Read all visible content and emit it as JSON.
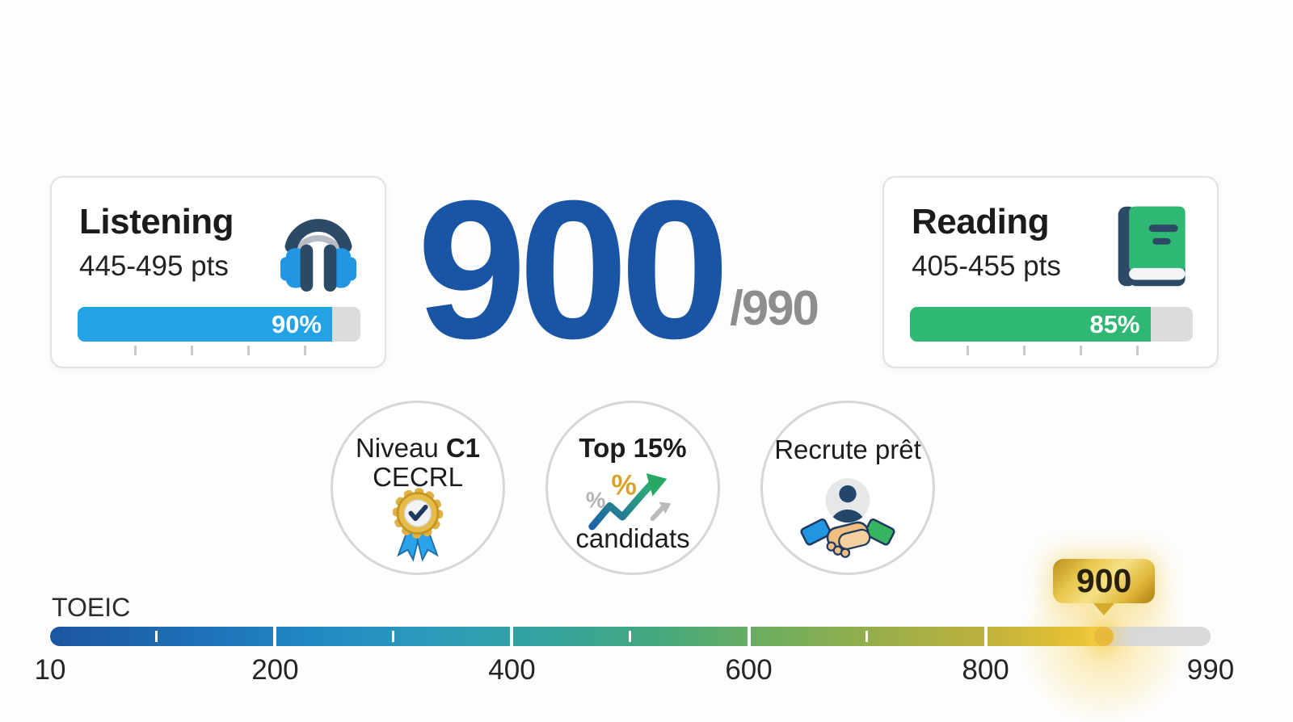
{
  "chart_data": {
    "type": "bar",
    "title": "TOEIC 900/990",
    "categories": [
      "Listening",
      "Reading"
    ],
    "values": [
      90,
      85
    ],
    "value_unit": "%",
    "category_point_ranges": [
      "445-495 pts",
      "405-455 pts"
    ],
    "gauge": {
      "label": "TOEIC",
      "min": 10,
      "max": 990,
      "marker": 900,
      "axis_tick_labels": [
        10,
        200,
        400,
        600,
        800,
        990
      ],
      "gradient": [
        "#1d55a0",
        "#2187c4",
        "#34a3a0",
        "#43a87f",
        "#96ae4b",
        "#e0be35",
        "#f0ca3a"
      ],
      "remainder_color": "#d9d9d9"
    }
  },
  "score": {
    "value": "900",
    "out_of": "/990",
    "value_color": "#1a55a5",
    "out_of_color": "#8e8e8e"
  },
  "cards": {
    "listening": {
      "title": "Listening",
      "range": "445-495 pts",
      "percent": 90,
      "percent_label": "90%",
      "bar_color": "#23a3e4"
    },
    "reading": {
      "title": "Reading",
      "range": "405-455 pts",
      "percent": 85,
      "percent_label": "85%",
      "bar_color": "#2eb873"
    },
    "ruler_ticks": [
      20,
      40,
      60,
      80
    ],
    "track_color": "#dcdcdc"
  },
  "badges": {
    "level": {
      "line1_prefix": "Niveau ",
      "line1_bold": "C1",
      "line2": "CECRL",
      "icon": "medal-check-icon"
    },
    "rank": {
      "title": "Top 15%",
      "subtitle": "candidats",
      "icon": "growth-chart-icon"
    },
    "recruit": {
      "title": "Recrute prêt",
      "icon": "person-handshake-icon"
    }
  },
  "scale": {
    "label": "TOEIC",
    "min": 10,
    "max": 990,
    "marker_value": 900,
    "marker_label": "900",
    "bar_ticks": [
      {
        "value": 100,
        "type": "minor"
      },
      {
        "value": 200,
        "type": "major"
      },
      {
        "value": 300,
        "type": "minor"
      },
      {
        "value": 400,
        "type": "major"
      },
      {
        "value": 500,
        "type": "minor"
      },
      {
        "value": 600,
        "type": "major"
      },
      {
        "value": 700,
        "type": "minor"
      },
      {
        "value": 800,
        "type": "major"
      }
    ],
    "axis_labels": [
      {
        "value": 10,
        "label": "10"
      },
      {
        "value": 200,
        "label": "200"
      },
      {
        "value": 400,
        "label": "400"
      },
      {
        "value": 600,
        "label": "600"
      },
      {
        "value": 800,
        "label": "800"
      },
      {
        "value": 990,
        "label": "990"
      }
    ]
  }
}
